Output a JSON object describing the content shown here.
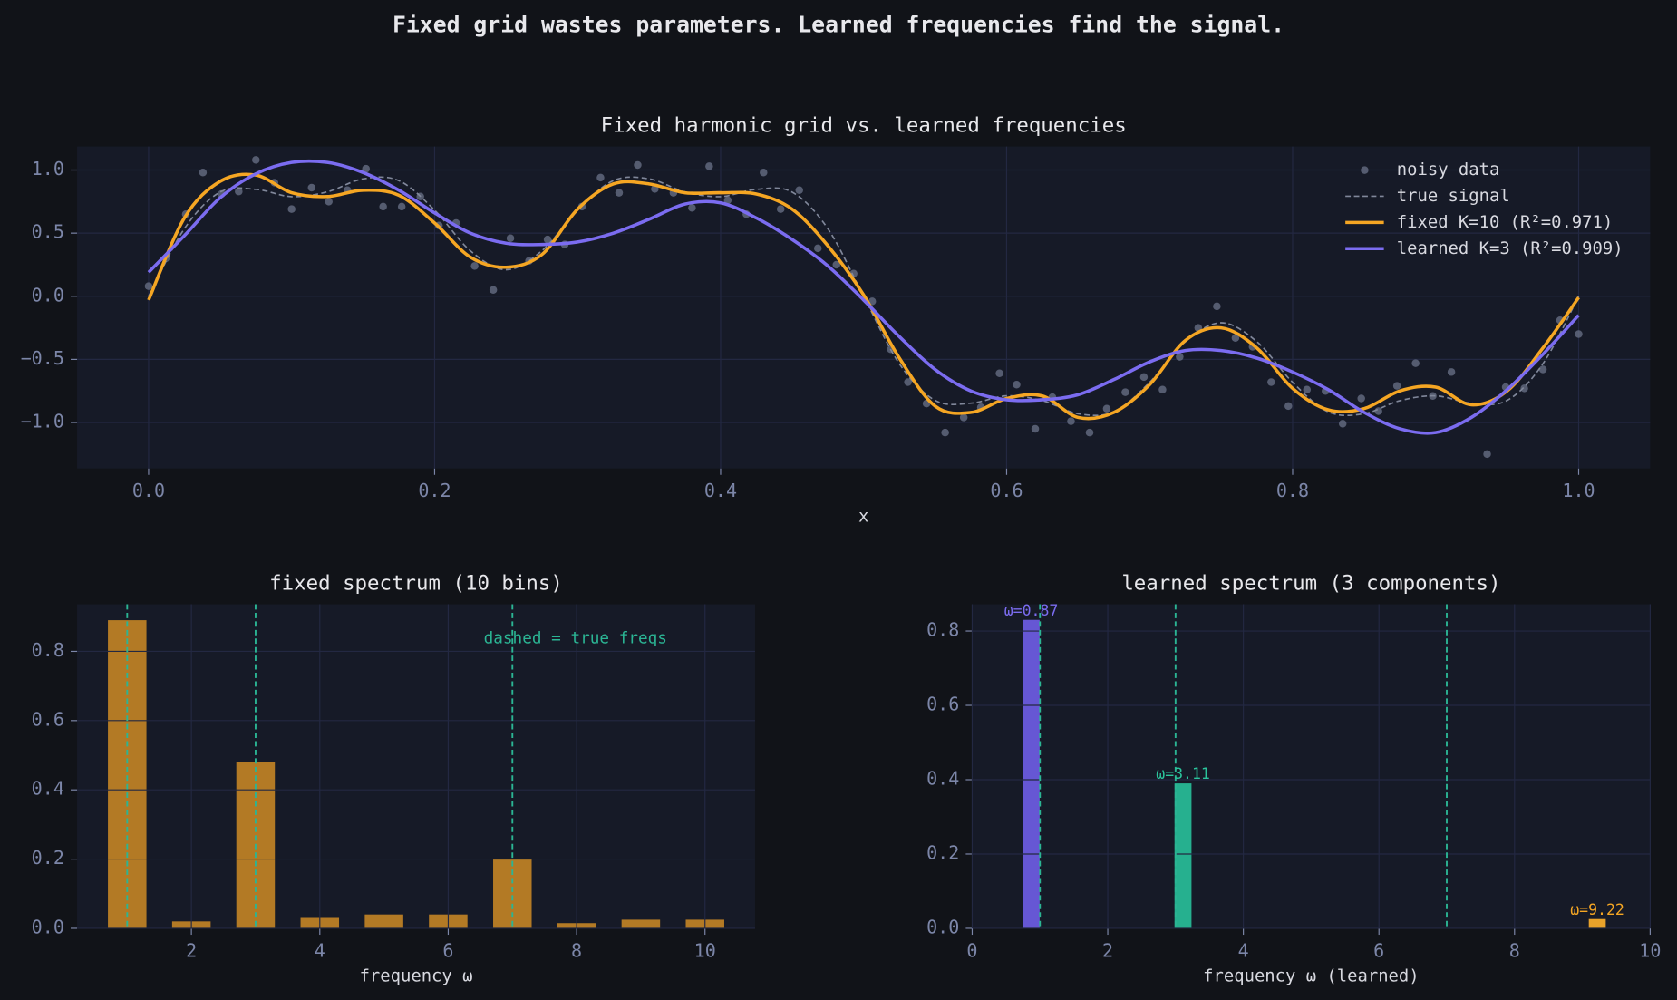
{
  "title": "Fixed grid wastes parameters. Learned frequencies find the signal.",
  "chart_data": [
    {
      "type": "line",
      "title": "Fixed harmonic grid vs. learned frequencies",
      "xlabel": "x",
      "x": [
        0,
        0.025,
        0.05,
        0.075,
        0.1,
        0.125,
        0.15,
        0.175,
        0.2,
        0.225,
        0.25,
        0.275,
        0.3,
        0.325,
        0.35,
        0.375,
        0.4,
        0.425,
        0.45,
        0.475,
        0.5,
        0.525,
        0.55,
        0.575,
        0.6,
        0.625,
        0.65,
        0.675,
        0.7,
        0.725,
        0.75,
        0.775,
        0.8,
        0.825,
        0.85,
        0.875,
        0.9,
        0.925,
        0.95,
        0.975,
        1
      ],
      "xlim": [
        -0.05,
        1.05
      ],
      "ylim": [
        -1.364,
        1.186
      ],
      "xticks": [
        {
          "value": 0,
          "label": "0.0"
        },
        0.2,
        0.4,
        0.6,
        0.8,
        {
          "value": 1,
          "label": "1.0"
        }
      ],
      "yticks": [
        {
          "value": -1,
          "label": "−1.0"
        },
        {
          "value": -0.5,
          "label": "−0.5"
        },
        {
          "value": 0,
          "label": "0.0"
        },
        0.5,
        {
          "value": 1,
          "label": "1.0"
        }
      ],
      "grid": true,
      "legend": "upper right",
      "series": [
        {
          "name": "noisy data",
          "type": "scatter",
          "color": "#6b7389",
          "x": [
            0,
            0.012,
            0.026,
            0.038,
            0.051,
            0.063,
            0.075,
            0.088,
            0.1,
            0.114,
            0.126,
            0.139,
            0.152,
            0.164,
            0.177,
            0.19,
            0.203,
            0.215,
            0.228,
            0.241,
            0.253,
            0.266,
            0.279,
            0.291,
            0.303,
            0.316,
            0.329,
            0.342,
            0.354,
            0.367,
            0.38,
            0.392,
            0.405,
            0.418,
            0.43,
            0.442,
            0.455,
            0.468,
            0.481,
            0.493,
            0.506,
            0.519,
            0.531,
            0.544,
            0.557,
            0.57,
            0.582,
            0.595,
            0.607,
            0.62,
            0.632,
            0.645,
            0.658,
            0.67,
            0.683,
            0.696,
            0.709,
            0.721,
            0.734,
            0.747,
            0.76,
            0.772,
            0.785,
            0.797,
            0.81,
            0.823,
            0.835,
            0.848,
            0.86,
            0.873,
            0.886,
            0.898,
            0.911,
            0.936,
            0.949,
            0.962,
            0.975,
            0.987,
            1
          ],
          "values": [
            0.08,
            0.3,
            0.65,
            0.98,
            0.81,
            0.83,
            1.08,
            0.9,
            0.69,
            0.86,
            0.75,
            0.84,
            1.01,
            0.71,
            0.71,
            0.79,
            0.56,
            0.58,
            0.24,
            0.05,
            0.46,
            0.28,
            0.45,
            0.41,
            0.71,
            0.94,
            0.82,
            1.04,
            0.85,
            0.82,
            0.7,
            1.03,
            0.76,
            0.65,
            0.98,
            0.69,
            0.84,
            0.38,
            0.25,
            0.18,
            -0.04,
            -0.42,
            -0.68,
            -0.85,
            -1.08,
            -0.96,
            -0.88,
            -0.61,
            -0.7,
            -1.05,
            -0.8,
            -0.99,
            -1.08,
            -0.89,
            -0.76,
            -0.64,
            -0.74,
            -0.48,
            -0.25,
            -0.08,
            -0.33,
            -0.4,
            -0.68,
            -0.87,
            -0.74,
            -0.75,
            -1.01,
            -0.81,
            -0.91,
            -0.71,
            -0.53,
            -0.79,
            -0.6,
            -1.25,
            -0.72,
            -0.73,
            -0.58,
            -0.19,
            -0.3
          ]
        },
        {
          "name": "true signal",
          "linestyle": "dashed",
          "color": "#80879a",
          "values": [
            0,
            0.535,
            0.825,
            0.847,
            0.789,
            0.827,
            0.93,
            0.916,
            0.682,
            0.36,
            0.21,
            0.36,
            0.682,
            0.916,
            0.93,
            0.827,
            0.789,
            0.847,
            0.825,
            0.535,
            0,
            -0.535,
            -0.825,
            -0.847,
            -0.789,
            -0.827,
            -0.93,
            -0.916,
            -0.682,
            -0.36,
            -0.21,
            -0.36,
            -0.682,
            -0.916,
            -0.93,
            -0.827,
            -0.789,
            -0.847,
            -0.825,
            -0.535,
            0
          ]
        },
        {
          "name": "fixed K=10 (R²=0.971)",
          "color": "#f5a623",
          "values": [
            -0.03,
            0.62,
            0.91,
            0.96,
            0.82,
            0.79,
            0.84,
            0.8,
            0.58,
            0.31,
            0.23,
            0.33,
            0.69,
            0.89,
            0.89,
            0.82,
            0.82,
            0.81,
            0.69,
            0.4,
            0.01,
            -0.49,
            -0.87,
            -0.92,
            -0.81,
            -0.79,
            -0.96,
            -0.92,
            -0.7,
            -0.35,
            -0.25,
            -0.41,
            -0.73,
            -0.9,
            -0.89,
            -0.75,
            -0.72,
            -0.86,
            -0.75,
            -0.41,
            -0.01
          ]
        },
        {
          "name": "learned K=3 (R²=0.909)",
          "color": "#7b6cf0",
          "values": [
            0.19,
            0.48,
            0.78,
            0.97,
            1.06,
            1.06,
            0.98,
            0.84,
            0.66,
            0.5,
            0.42,
            0.41,
            0.43,
            0.5,
            0.61,
            0.73,
            0.74,
            0.62,
            0.45,
            0.24,
            -0.03,
            -0.32,
            -0.58,
            -0.75,
            -0.82,
            -0.82,
            -0.78,
            -0.66,
            -0.52,
            -0.43,
            -0.43,
            -0.49,
            -0.6,
            -0.74,
            -0.92,
            -1.05,
            -1.08,
            -0.96,
            -0.74,
            -0.46,
            -0.15
          ]
        }
      ]
    },
    {
      "type": "bar",
      "title": "fixed spectrum (10 bins)",
      "xlabel": "frequency ω",
      "x": [
        1,
        2,
        3,
        4,
        5,
        6,
        7,
        8,
        9,
        10
      ],
      "values": [
        0.89,
        0.02,
        0.48,
        0.03,
        0.04,
        0.04,
        0.2,
        0.015,
        0.025,
        0.025
      ],
      "color": "#b37a25",
      "xlim": [
        0.22,
        10.78
      ],
      "ylim": [
        0,
        0.936
      ],
      "xticks": [
        2,
        4,
        6,
        8,
        10
      ],
      "yticks": [
        {
          "value": 0,
          "label": "0.0"
        },
        0.2,
        0.4,
        0.6,
        0.8
      ],
      "grid": true,
      "true_freqs": [
        1,
        3,
        7
      ],
      "true_freq_color": "#2bb594",
      "annotation": "dashed = true freqs"
    },
    {
      "type": "bar",
      "title": "learned spectrum (3 components)",
      "xlabel": "frequency ω (learned)",
      "x": [
        0.87,
        3.11,
        9.22
      ],
      "values": [
        0.83,
        0.39,
        0.025
      ],
      "colors": [
        "#6657d4",
        "#26b08f",
        "#e8a22a"
      ],
      "labels": [
        "ω=0.87",
        "ω=3.11",
        "ω=9.22"
      ],
      "label_colors": [
        "#7b6cf0",
        "#2bc49c",
        "#f5a623"
      ],
      "xlim": [
        0,
        10
      ],
      "ylim": [
        0,
        0.872
      ],
      "xticks": [
        0,
        2,
        4,
        6,
        8,
        10
      ],
      "yticks": [
        {
          "value": 0,
          "label": "0.0"
        },
        0.2,
        0.4,
        0.6,
        0.8
      ],
      "grid": true,
      "true_freqs": [
        1,
        3,
        7
      ],
      "true_freq_color": "#2bb594"
    }
  ]
}
